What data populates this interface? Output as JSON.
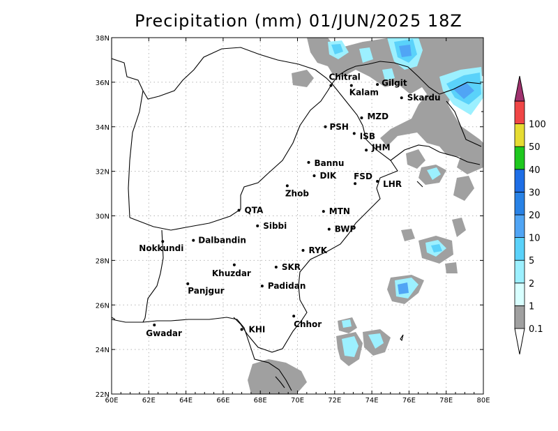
{
  "title": "Precipitation (mm) 01/JUN/2025 18Z",
  "axes": {
    "lon_labels": [
      "60E",
      "62E",
      "64E",
      "66E",
      "68E",
      "70E",
      "72E",
      "74E",
      "76E",
      "78E",
      "80E"
    ],
    "lat_labels": [
      "22N",
      "24N",
      "26N",
      "28N",
      "30N",
      "32N",
      "34N",
      "36N",
      "38N"
    ],
    "lon_range": [
      60,
      80
    ],
    "lat_range": [
      22,
      38
    ],
    "grid": "dotted"
  },
  "legend": {
    "bins": [
      {
        "label": "0.1",
        "color": "#a0a0a0"
      },
      {
        "label": "1",
        "color": "#d8ffff"
      },
      {
        "label": "2",
        "color": "#9cf0ff"
      },
      {
        "label": "5",
        "color": "#5ad2fa"
      },
      {
        "label": "10",
        "color": "#50a5f5"
      },
      {
        "label": "20",
        "color": "#2882e6"
      },
      {
        "label": "30",
        "color": "#1e6ee6"
      },
      {
        "label": "40",
        "color": "#1ec81e"
      },
      {
        "label": "50",
        "color": "#e6dc32"
      },
      {
        "label": "100",
        "color": "#f04646"
      }
    ],
    "over_color": "#a0326e",
    "under_color": "#ffffff"
  },
  "cities": [
    {
      "name": "Chitral",
      "lon": 71.8,
      "lat": 35.85
    },
    {
      "name": "Gilgit",
      "lon": 74.3,
      "lat": 35.9
    },
    {
      "name": "Kalam",
      "lon": 72.9,
      "lat": 35.85
    },
    {
      "name": "Skardu",
      "lon": 75.6,
      "lat": 35.3
    },
    {
      "name": "MZD",
      "lon": 73.45,
      "lat": 34.4
    },
    {
      "name": "PSH",
      "lon": 71.5,
      "lat": 34.0
    },
    {
      "name": "ISB",
      "lon": 73.05,
      "lat": 33.7
    },
    {
      "name": "JHM",
      "lon": 73.7,
      "lat": 32.95
    },
    {
      "name": "Bannu",
      "lon": 70.6,
      "lat": 32.4
    },
    {
      "name": "DIK",
      "lon": 70.9,
      "lat": 31.8
    },
    {
      "name": "FSD",
      "lon": 73.1,
      "lat": 31.45
    },
    {
      "name": "LHR",
      "lon": 74.3,
      "lat": 31.55
    },
    {
      "name": "Zhob",
      "lon": 69.45,
      "lat": 31.35
    },
    {
      "name": "QTA",
      "lon": 66.85,
      "lat": 30.25
    },
    {
      "name": "MTN",
      "lon": 71.4,
      "lat": 30.2
    },
    {
      "name": "Sibbi",
      "lon": 67.85,
      "lat": 29.55
    },
    {
      "name": "BWP",
      "lon": 71.7,
      "lat": 29.4
    },
    {
      "name": "Nokkundi",
      "lon": 62.75,
      "lat": 28.85
    },
    {
      "name": "Dalbandin",
      "lon": 64.4,
      "lat": 28.9
    },
    {
      "name": "RYK",
      "lon": 70.3,
      "lat": 28.45
    },
    {
      "name": "Khuzdar",
      "lon": 66.6,
      "lat": 27.8
    },
    {
      "name": "SKR",
      "lon": 68.85,
      "lat": 27.7
    },
    {
      "name": "Panjgur",
      "lon": 64.1,
      "lat": 26.95
    },
    {
      "name": "Padidan",
      "lon": 68.1,
      "lat": 26.85
    },
    {
      "name": "Chhor",
      "lon": 69.8,
      "lat": 25.5
    },
    {
      "name": "KHI",
      "lon": 67.0,
      "lat": 24.9
    },
    {
      "name": "Gwadar",
      "lon": 62.3,
      "lat": 25.1
    }
  ]
}
